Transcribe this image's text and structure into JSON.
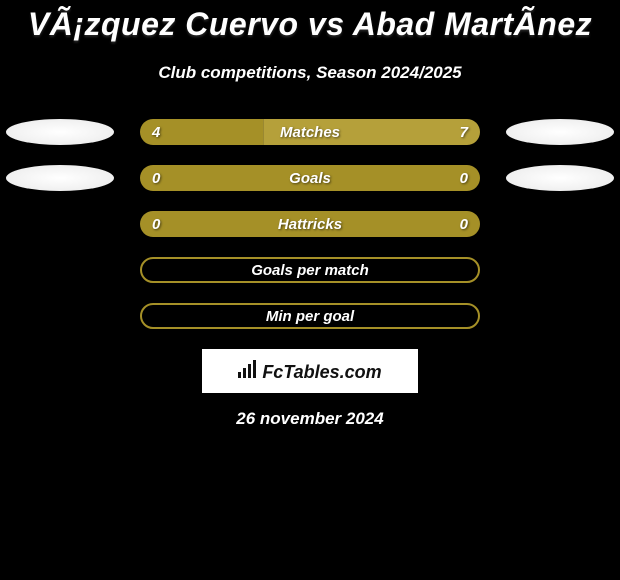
{
  "title": "VÃ¡zquez Cuervo vs Abad MartÃ­nez",
  "subtitle": "Club competitions, Season 2024/2025",
  "date": "26 november 2024",
  "logo_text": "FcTables.com",
  "colors": {
    "bar_fill": "#a59027",
    "bar_fill_light": "#b5a03a",
    "bar_border": "#a59027",
    "bg": "#000000",
    "oval": "#ffffff",
    "text": "#ffffff",
    "logo_bg": "#ffffff"
  },
  "stats": [
    {
      "label": "Matches",
      "left_value": "4",
      "right_value": "7",
      "left_pct": 36.4,
      "right_pct": 63.6,
      "has_ovals": true,
      "filled": true,
      "split": true
    },
    {
      "label": "Goals",
      "left_value": "0",
      "right_value": "0",
      "left_pct": 50,
      "right_pct": 50,
      "has_ovals": true,
      "filled": true,
      "split": false
    },
    {
      "label": "Hattricks",
      "left_value": "0",
      "right_value": "0",
      "left_pct": 50,
      "right_pct": 50,
      "has_ovals": false,
      "filled": true,
      "split": false
    },
    {
      "label": "Goals per match",
      "left_value": "",
      "right_value": "",
      "left_pct": 0,
      "right_pct": 0,
      "has_ovals": false,
      "filled": false,
      "split": false
    },
    {
      "label": "Min per goal",
      "left_value": "",
      "right_value": "",
      "left_pct": 0,
      "right_pct": 0,
      "has_ovals": false,
      "filled": false,
      "split": false
    }
  ],
  "typography": {
    "title_fontsize": 32,
    "subtitle_fontsize": 17,
    "label_fontsize": 15,
    "date_fontsize": 17
  }
}
